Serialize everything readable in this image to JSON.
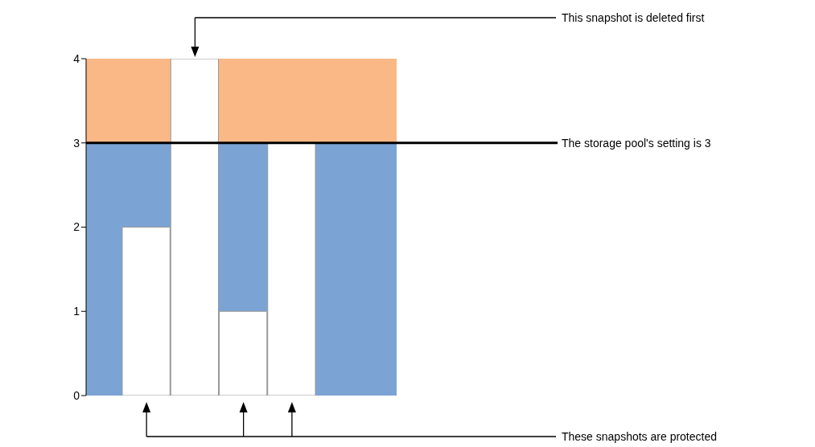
{
  "chart_data": {
    "type": "bar",
    "categories": [
      null,
      null,
      null,
      null
    ],
    "values": [
      2,
      4,
      1,
      3
    ],
    "color": "#ffffff",
    "ylim": [
      0,
      4
    ],
    "yticks": [
      0,
      1,
      2,
      3,
      4
    ],
    "grid": false,
    "bands": [
      {
        "axis": "y",
        "from": 0,
        "to": 3,
        "color": "#7ba3d4"
      },
      {
        "axis": "y",
        "from": 3,
        "to": 4,
        "color": "#f9b886"
      }
    ],
    "ref_lines": [
      {
        "axis": "y",
        "value": 3,
        "label": "The storage pool's setting is 3",
        "color": "#000000"
      }
    ],
    "annotations": [
      "This snapshot is deleted first",
      "These snapshots are protected"
    ]
  }
}
